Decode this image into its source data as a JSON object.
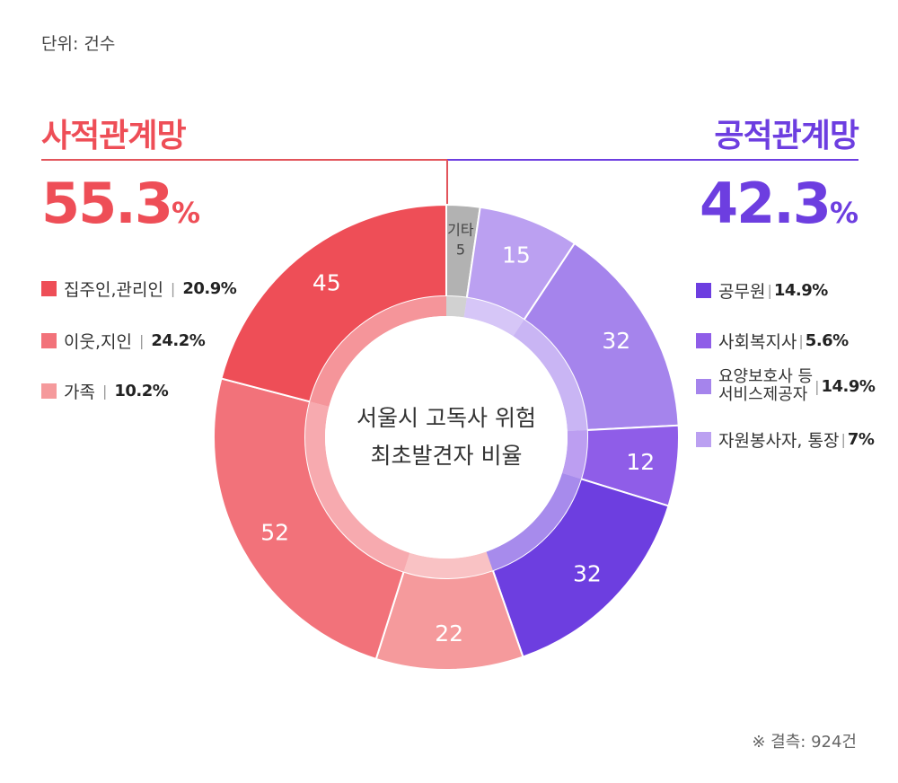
{
  "unit_label": "단위: 건수",
  "footnote": "※ 결측: 924건",
  "groups": {
    "private": {
      "title": "사적관계망",
      "pct_value": "55.3",
      "pct_sign": "%",
      "color": "#ee4e57"
    },
    "public": {
      "title": "공적관계망",
      "pct_value": "42.3",
      "pct_sign": "%",
      "color": "#6d3ee0"
    }
  },
  "legend": {
    "private": [
      {
        "label": "집주인,관리인",
        "sep": "|",
        "value": "20.9%",
        "color": "#ee4e57"
      },
      {
        "label": "이웃,지인",
        "sep": "|",
        "value": "24.2%",
        "color": "#f2727a"
      },
      {
        "label": "가족",
        "sep": "|",
        "value": "10.2%",
        "color": "#f59a9c"
      }
    ],
    "public": [
      {
        "label": "공무원",
        "sep": "|",
        "value": "14.9%",
        "color": "#6d3ee0"
      },
      {
        "label": "사회복지사",
        "sep": "|",
        "value": "5.6%",
        "color": "#8f5de8"
      },
      {
        "label_line1": "요양보호사 등",
        "label_line2": "서비스제공자",
        "sep": "|",
        "value": "14.9%",
        "color": "#a584ec"
      },
      {
        "label": "자원봉사자, 통장",
        "sep": "|",
        "value": "7%",
        "color": "#bba0f1"
      }
    ]
  },
  "chart_data": {
    "type": "pie",
    "title": "서울시 고독사 위험 최초발견자 비율",
    "center_line1": "서울시 고독사 위험",
    "center_line2": "최초발견자 비율",
    "slices": [
      {
        "label": "기타",
        "value": 5,
        "color": "#b2b2b2"
      },
      {
        "label": "",
        "value": 15,
        "color": "#bba0f1"
      },
      {
        "label": "",
        "value": 32,
        "color": "#a584ec"
      },
      {
        "label": "",
        "value": 12,
        "color": "#8f5de8"
      },
      {
        "label": "",
        "value": 32,
        "color": "#6d3ee0"
      },
      {
        "label": "",
        "value": 22,
        "color": "#f59a9c"
      },
      {
        "label": "",
        "value": 52,
        "color": "#f2727a"
      },
      {
        "label": "",
        "value": 45,
        "color": "#ee4e57"
      }
    ]
  }
}
